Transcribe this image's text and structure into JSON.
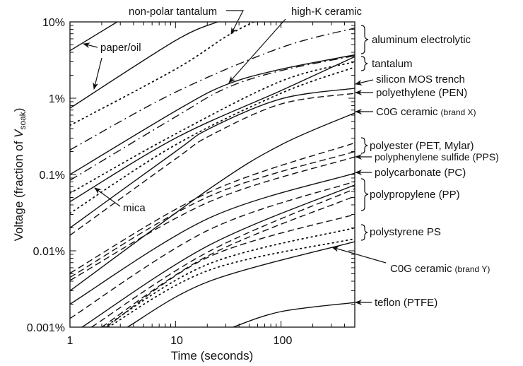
{
  "chart_data": {
    "type": "line",
    "title": "",
    "xlabel": "Time (seconds)",
    "ylabel": {
      "main": "Voltage (fraction of ",
      "var": "V",
      "sub": "soak",
      "close": ")"
    },
    "x_scale": "log",
    "y_scale": "log",
    "xlim": [
      1,
      500
    ],
    "ylim_percent": [
      0.001,
      10
    ],
    "x_tick_labels": [
      {
        "value": 1,
        "label": "1"
      },
      {
        "value": 10,
        "label": "10"
      },
      {
        "value": 100,
        "label": "100"
      }
    ],
    "y_tick_labels": [
      {
        "value": 10,
        "label": "10%"
      },
      {
        "value": 1,
        "label": "1%"
      },
      {
        "value": 0.1,
        "label": "0.1%"
      },
      {
        "value": 0.01,
        "label": "0.01%"
      },
      {
        "value": 0.001,
        "label": "0.001%"
      }
    ],
    "grid": false,
    "series": [
      {
        "style": "solid",
        "points": [
          [
            1,
            4.2
          ],
          [
            2.8,
            10
          ]
        ]
      },
      {
        "style": "solid",
        "points": [
          [
            1,
            0.74
          ],
          [
            10,
            5.7
          ],
          [
            25,
            10
          ]
        ]
      },
      {
        "style": "dotted",
        "points": [
          [
            1,
            0.44
          ],
          [
            10,
            2.4
          ],
          [
            30,
            6.4
          ],
          [
            55,
            10
          ]
        ]
      },
      {
        "style": "dashdot",
        "points": [
          [
            1,
            0.21
          ],
          [
            10,
            1.2
          ],
          [
            100,
            4.6
          ],
          [
            500,
            8.3
          ]
        ]
      },
      {
        "style": "solid",
        "points": [
          [
            1,
            0.1
          ],
          [
            10,
            0.68
          ],
          [
            30,
            1.5
          ],
          [
            100,
            2.4
          ],
          [
            500,
            3.7
          ]
        ]
      },
      {
        "style": "dashdot",
        "points": [
          [
            1,
            0.084
          ],
          [
            10,
            0.57
          ],
          [
            30,
            1.35
          ],
          [
            100,
            2.3
          ],
          [
            500,
            3.6
          ]
        ]
      },
      {
        "style": "dotted",
        "points": [
          [
            1,
            0.057
          ],
          [
            10,
            0.34
          ],
          [
            100,
            1.67
          ],
          [
            500,
            3.0
          ]
        ]
      },
      {
        "style": "solid",
        "points": [
          [
            1,
            0.044
          ],
          [
            10,
            0.3
          ],
          [
            100,
            1.26
          ],
          [
            500,
            3.5
          ]
        ]
      },
      {
        "style": "dotted",
        "points": [
          [
            1,
            0.031
          ],
          [
            10,
            0.245
          ],
          [
            100,
            1.16
          ],
          [
            500,
            2.55
          ]
        ]
      },
      {
        "style": "solid",
        "points": [
          [
            1,
            0.02
          ],
          [
            10,
            0.2
          ],
          [
            21,
            0.4
          ],
          [
            100,
            0.98
          ],
          [
            500,
            1.35
          ]
        ]
      },
      {
        "style": "dashed",
        "points": [
          [
            1,
            0.016
          ],
          [
            10,
            0.16
          ],
          [
            21,
            0.32
          ],
          [
            100,
            0.84
          ],
          [
            500,
            1.16
          ]
        ]
      },
      {
        "style": "dashed",
        "points": [
          [
            1,
            0.0051
          ],
          [
            21,
            0.059
          ],
          [
            500,
            0.26
          ]
        ]
      },
      {
        "style": "dashed",
        "points": [
          [
            1,
            0.0045
          ],
          [
            21,
            0.052
          ],
          [
            500,
            0.2
          ]
        ]
      },
      {
        "style": "dashed",
        "points": [
          [
            1,
            0.0041
          ],
          [
            21,
            0.044
          ],
          [
            500,
            0.17
          ]
        ]
      },
      {
        "style": "solid",
        "points": [
          [
            1,
            0.003
          ],
          [
            21,
            0.065
          ],
          [
            100,
            0.245
          ],
          [
            500,
            0.64
          ]
        ]
      },
      {
        "style": "solid",
        "points": [
          [
            1,
            0.002
          ],
          [
            21,
            0.027
          ],
          [
            500,
            0.104
          ]
        ]
      },
      {
        "style": "dashed",
        "points": [
          [
            1,
            0.0013
          ],
          [
            21,
            0.019
          ],
          [
            500,
            0.081
          ]
        ]
      },
      {
        "style": "solid",
        "points": [
          [
            1.3,
            0.001
          ],
          [
            21,
            0.0119
          ],
          [
            500,
            0.073
          ]
        ]
      },
      {
        "style": "dashed",
        "points": [
          [
            1.6,
            0.001
          ],
          [
            21,
            0.0099
          ],
          [
            500,
            0.065
          ]
        ]
      },
      {
        "style": "dashed",
        "points": [
          [
            2,
            0.001
          ],
          [
            21,
            0.0088
          ],
          [
            500,
            0.052
          ]
        ]
      },
      {
        "style": "dashed",
        "points": [
          [
            2.2,
            0.001
          ],
          [
            21,
            0.0084
          ],
          [
            500,
            0.03
          ]
        ]
      },
      {
        "style": "dotted",
        "points": [
          [
            2.1,
            0.001
          ],
          [
            21,
            0.0068
          ],
          [
            500,
            0.02
          ]
        ]
      },
      {
        "style": "dotted",
        "points": [
          [
            2.3,
            0.001
          ],
          [
            21,
            0.0056
          ],
          [
            500,
            0.0144
          ]
        ]
      },
      {
        "style": "solid",
        "points": [
          [
            3.5,
            0.001
          ],
          [
            21,
            0.004
          ],
          [
            500,
            0.0132
          ]
        ]
      },
      {
        "style": "solid",
        "points": [
          [
            35,
            0.001
          ],
          [
            100,
            0.0016
          ],
          [
            500,
            0.0021
          ]
        ]
      }
    ],
    "annotations": {
      "non_polar_tantalum": "non-polar tantalum",
      "high_k_ceramic": "high-K ceramic",
      "paper_oil": "paper/oil",
      "mica": "mica",
      "aluminum_electrolytic": "aluminum electrolytic",
      "tantalum": "tantalum",
      "silicon_mos_trench": "silicon MOS trench",
      "polyethylene": "polyethylene (PEN)",
      "c0g_x": "C0G ceramic",
      "c0g_x_brand": "(brand X)",
      "polyester": "polyester (PET, Mylar)",
      "pps": "polyphenylene sulfide (PPS)",
      "pc": "polycarbonate (PC)",
      "pp": "polypropylene (PP)",
      "ps": "polystyrene PS",
      "c0g_y": "C0G ceramic",
      "c0g_y_brand": "(brand Y)",
      "teflon": "teflon (PTFE)"
    }
  }
}
